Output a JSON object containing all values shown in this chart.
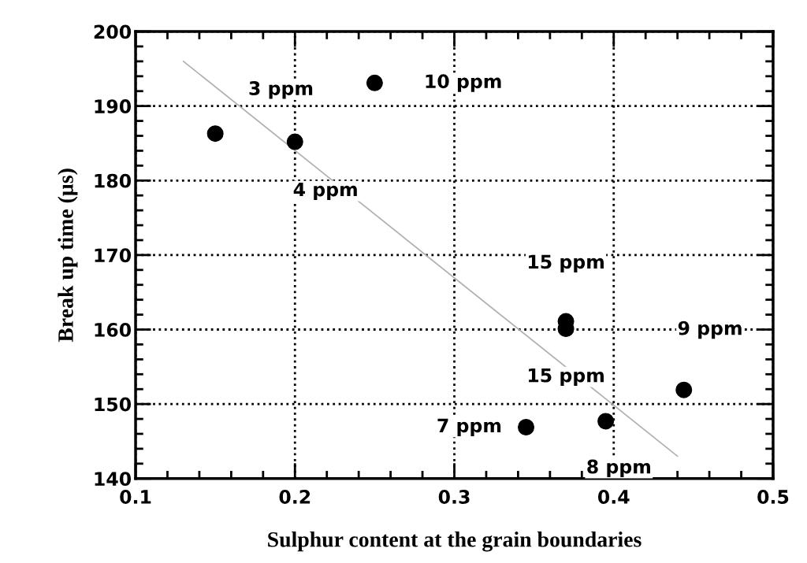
{
  "chart_data": {
    "type": "scatter",
    "xlabel": "Sulphur content at the grain boundaries",
    "ylabel": "Break up time (µs)",
    "xlim": [
      0.1,
      0.5
    ],
    "xticks": [
      0.1,
      0.2,
      0.3,
      0.4,
      0.5
    ],
    "ylim": [
      140,
      200
    ],
    "yticks": [
      140,
      150,
      160,
      170,
      180,
      190,
      200
    ],
    "grid": true,
    "series": [
      {
        "marker": "circle",
        "color": "#000000",
        "x": [
          0.15,
          0.2,
          0.25,
          0.37,
          0.37,
          0.345,
          0.395,
          0.444
        ],
        "values": [
          186.3,
          185.2,
          193.1,
          161.1,
          160.1,
          146.9,
          147.7,
          151.9
        ]
      },
      {
        "type": "line",
        "marker": "none",
        "color": "#b0b0b0",
        "x": [
          0.13,
          0.44
        ],
        "values": [
          196,
          143
        ]
      }
    ],
    "annotations": [
      {
        "text": "3 ppm",
        "x": 0.15,
        "y": 186.3
      },
      {
        "text": "4 ppm",
        "x": 0.2,
        "y": 185.2
      },
      {
        "text": "10 ppm",
        "x": 0.25,
        "y": 193.1
      },
      {
        "text": "15 ppm",
        "x": 0.37,
        "y": 161.1
      },
      {
        "text": "15 ppm",
        "x": 0.37,
        "y": 160.1
      },
      {
        "text": "7 ppm",
        "x": 0.345,
        "y": 146.9
      },
      {
        "text": "8 ppm",
        "x": 0.395,
        "y": 147.7
      },
      {
        "text": "9 ppm",
        "x": 0.444,
        "y": 151.9
      }
    ]
  }
}
